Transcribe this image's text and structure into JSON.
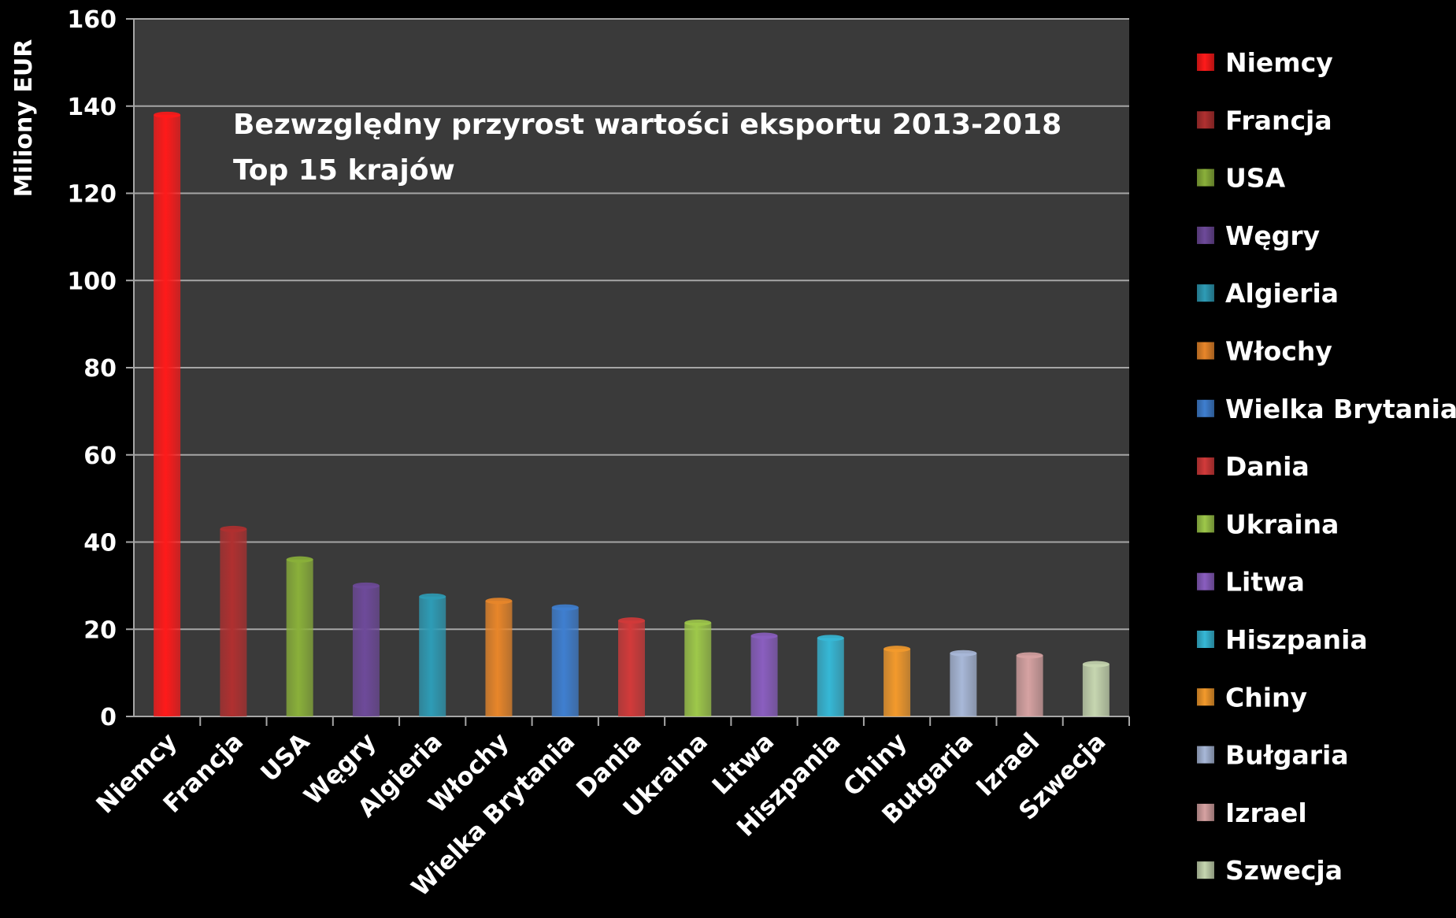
{
  "chart_data": {
    "type": "bar",
    "title": "Bezwzględny przyrost wartości eksportu 2013-2018",
    "subtitle": "Top 15 krajów",
    "xlabel": "",
    "ylabel": "Miliony EUR",
    "ylim": [
      0,
      160
    ],
    "yticks": [
      0,
      20,
      40,
      60,
      80,
      100,
      120,
      140,
      160
    ],
    "grid": true,
    "legend_position": "right",
    "categories": [
      "Niemcy",
      "Francja",
      "USA",
      "Węgry",
      "Algieria",
      "Włochy",
      "Wielka Brytania",
      "Dania",
      "Ukraina",
      "Litwa",
      "Hiszpania",
      "Chiny",
      "Bułgaria",
      "Izrael",
      "Szwecja"
    ],
    "values": [
      138,
      43,
      36,
      30,
      27.5,
      26.5,
      25,
      22,
      21.5,
      18.5,
      18,
      15.5,
      14.5,
      14,
      12
    ],
    "colors": [
      "#ff1a1a",
      "#b03030",
      "#8ab03a",
      "#6e4a9a",
      "#2e9cb6",
      "#e8862a",
      "#3f7fd0",
      "#d23a3a",
      "#9ec84a",
      "#8a5ec0",
      "#36b8d6",
      "#f39a2c",
      "#a8b8d8",
      "#d6a2a2",
      "#c6d6b0"
    ]
  },
  "colors": {
    "background": "#000000",
    "plot_area": "#3a3a3a",
    "gridline": "#a6a6a6",
    "text": "#ffffff"
  }
}
